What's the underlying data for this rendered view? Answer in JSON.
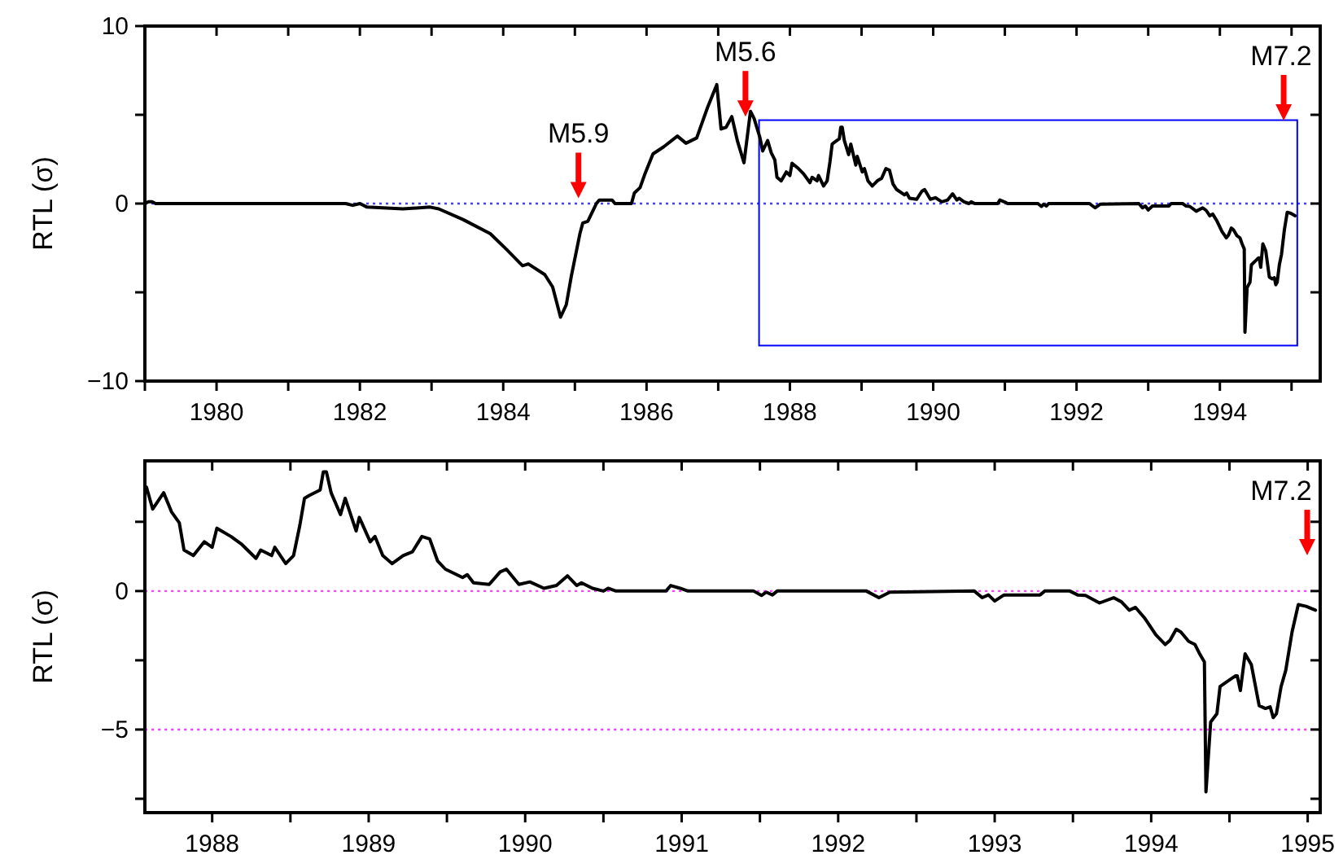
{
  "chart_data": [
    {
      "type": "line",
      "ylabel": "RTL (σ)",
      "xlim": [
        1979,
        1995.4
      ],
      "ylim": [
        -10,
        10
      ],
      "xticks": [
        {
          "value": 1979,
          "label": null
        },
        1980,
        {
          "value": 1981,
          "label": null
        },
        1982,
        {
          "value": 1983,
          "label": null
        },
        1984,
        {
          "value": 1985,
          "label": null
        },
        1986,
        {
          "value": 1987,
          "label": null
        },
        1988,
        {
          "value": 1989,
          "label": null
        },
        1990,
        {
          "value": 1991,
          "label": null
        },
        1992,
        {
          "value": 1993,
          "label": null
        },
        1994,
        {
          "value": 1995,
          "label": null
        }
      ],
      "yticks": [
        -10,
        {
          "value": -5,
          "label": null
        },
        0,
        {
          "value": 5,
          "label": null
        },
        10
      ],
      "grid": false,
      "marker": "none",
      "line_style": "solid",
      "ref_lines": [
        {
          "axis": "y",
          "value": 0,
          "color": "#4040ff",
          "line_style": "dotted"
        }
      ],
      "annotations": [
        {
          "text": "M5.9",
          "x": 1985.05,
          "y": 0.3
        },
        {
          "text": "M5.6",
          "x": 1987.38,
          "y": 4.9
        },
        {
          "text": "M7.2",
          "x": 1994.89
        }
      ],
      "series": [
        {
          "color": "#000000",
          "x": [
            1979.0,
            1979.05,
            1979.1,
            1979.15,
            1981.7,
            1981.8,
            1981.9,
            1982.0,
            1982.1,
            1982.6,
            1982.98,
            1983.1,
            1983.44,
            1983.82,
            1984.05,
            1984.27,
            1984.35,
            1984.58,
            1984.69,
            1984.8,
            1984.88,
            1984.95,
            1985.07,
            1985.11,
            1985.18,
            1985.3,
            1985.34,
            1985.52,
            1985.56,
            1985.79,
            1985.83,
            1985.91,
            1985.98,
            1986.09,
            1986.24,
            1986.43,
            1986.55,
            1986.7,
            1986.85,
            1986.92,
            1986.98,
            1987.04,
            1987.11,
            1987.19,
            1987.27,
            1987.36,
            1987.45,
            1987.5,
            1987.58,
            1987.62,
            1987.69,
            1987.74,
            1987.79,
            1987.82,
            1987.88,
            1987.95,
            1988.0,
            1988.03,
            1988.12,
            1988.19,
            1988.28,
            1988.31,
            1988.38,
            1988.4,
            1988.47,
            1988.52,
            1988.56,
            1988.59,
            1988.62,
            1988.69,
            1988.71,
            1988.73,
            1988.76,
            1988.82,
            1988.85,
            1988.92,
            1988.94,
            1989.01,
            1989.04,
            1989.09,
            1989.15,
            1989.22,
            1989.28,
            1989.34,
            1989.39,
            1989.44,
            1989.49,
            1989.6,
            1989.63,
            1989.67,
            1989.77,
            1989.84,
            1989.88,
            1989.96,
            1990.03,
            1990.12,
            1990.2,
            1990.27,
            1990.33,
            1990.36,
            1990.43,
            1990.5,
            1990.53,
            1990.58,
            1990.9,
            1990.93,
            1990.99,
            1991.04,
            1991.46,
            1991.51,
            1991.54,
            1991.58,
            1991.61,
            1992.18,
            1992.26,
            1992.33,
            1992.87,
            1992.92,
            1992.96,
            1993.0,
            1993.06,
            1993.29,
            1993.32,
            1993.48,
            1993.53,
            1993.58,
            1993.67,
            1993.76,
            1993.81,
            1993.86,
            1993.9,
            1993.96,
            1994.03,
            1994.09,
            1994.12,
            1994.16,
            1994.19,
            1994.24,
            1994.28,
            1994.31,
            1994.34,
            1994.35,
            1994.38,
            1994.42,
            1994.44,
            1994.49,
            1994.54,
            1994.55,
            1994.57,
            1994.6,
            1994.64,
            1994.69,
            1994.73,
            1994.76,
            1994.78,
            1994.8,
            1994.83,
            1994.86,
            1994.9,
            1994.94,
            1994.99,
            1995.05
          ],
          "values": [
            0,
            0.1,
            0.1,
            0,
            0,
            0,
            -0.1,
            0,
            -0.2,
            -0.3,
            -0.2,
            -0.3,
            -0.9,
            -1.7,
            -2.6,
            -3.5,
            -3.4,
            -4.0,
            -4.7,
            -6.4,
            -5.7,
            -4.1,
            -1.7,
            -1.1,
            -1.0,
            0,
            0.2,
            0.2,
            0,
            0,
            0.6,
            0.9,
            1.7,
            2.8,
            3.2,
            3.8,
            3.4,
            3.7,
            5.4,
            6.1,
            6.7,
            4.2,
            4.3,
            4.9,
            3.5,
            2.3,
            5.2,
            4.8,
            3.75,
            2.96,
            3.55,
            2.86,
            2.46,
            1.48,
            1.28,
            1.78,
            1.58,
            2.27,
            1.97,
            1.68,
            1.18,
            1.48,
            1.28,
            1.58,
            0.99,
            1.28,
            2.37,
            3.35,
            3.45,
            3.65,
            4.3,
            4.3,
            3.55,
            2.76,
            3.35,
            2.17,
            2.66,
            1.78,
            1.97,
            1.28,
            0.99,
            1.28,
            1.42,
            1.97,
            1.88,
            1.09,
            0.79,
            0.49,
            0.59,
            0.3,
            0.24,
            0.69,
            0.79,
            0.24,
            0.33,
            0.1,
            0.2,
            0.55,
            0.2,
            0.3,
            0.1,
            0,
            0.1,
            0,
            0,
            0.2,
            0.1,
            0,
            0,
            -0.16,
            -0.04,
            -0.14,
            0,
            0,
            -0.24,
            -0.04,
            0,
            -0.24,
            -0.14,
            -0.36,
            -0.14,
            -0.14,
            0,
            0,
            -0.14,
            -0.16,
            -0.43,
            -0.24,
            -0.39,
            -0.69,
            -0.59,
            -0.99,
            -1.58,
            -1.93,
            -1.78,
            -1.38,
            -1.48,
            -1.82,
            -1.93,
            -2.27,
            -2.56,
            -7.25,
            -4.73,
            -4.43,
            -3.45,
            -3.25,
            -3.06,
            -3.06,
            -3.59,
            -2.27,
            -2.66,
            -4.14,
            -4.24,
            -4.18,
            -4.57,
            -4.43,
            -3.45,
            -2.86,
            -1.48,
            -0.49,
            -0.55,
            -0.69
          ]
        }
      ]
    },
    {
      "type": "line",
      "ylabel": "RTL (σ)",
      "xlim": [
        1987.57,
        1995.08
      ],
      "ylim": [
        -8,
        4.7
      ],
      "xticks": [
        1988,
        {
          "value": 1988.5,
          "label": null
        },
        1989,
        {
          "value": 1989.5,
          "label": null
        },
        1990,
        {
          "value": 1990.5,
          "label": null
        },
        1991,
        {
          "value": 1991.5,
          "label": null
        },
        1992,
        {
          "value": 1992.5,
          "label": null
        },
        1993,
        {
          "value": 1993.5,
          "label": null
        },
        1994,
        {
          "value": 1994.5,
          "label": null
        },
        1995
      ],
      "yticks": [
        {
          "value": -7.5,
          "label": null
        },
        -5,
        {
          "value": -2.5,
          "label": null
        },
        0,
        {
          "value": 2.5,
          "label": null
        }
      ],
      "grid": false,
      "marker": "none",
      "line_style": "solid",
      "ref_lines": [
        {
          "axis": "y",
          "value": 0,
          "color": "#ff40ff",
          "line_style": "dotted"
        },
        {
          "axis": "y",
          "value": -5,
          "color": "#ff40ff",
          "line_style": "dotted"
        }
      ],
      "annotations": [
        "M7.2"
      ],
      "series": [
        {
          "color": "#000000",
          "x": [
            1987.58,
            1987.62,
            1987.69,
            1987.74,
            1987.79,
            1987.82,
            1987.88,
            1987.95,
            1988.0,
            1988.03,
            1988.12,
            1988.19,
            1988.28,
            1988.31,
            1988.38,
            1988.4,
            1988.47,
            1988.52,
            1988.56,
            1988.59,
            1988.62,
            1988.69,
            1988.71,
            1988.73,
            1988.76,
            1988.82,
            1988.85,
            1988.92,
            1988.94,
            1989.01,
            1989.04,
            1989.09,
            1989.15,
            1989.22,
            1989.28,
            1989.34,
            1989.39,
            1989.44,
            1989.49,
            1989.6,
            1989.63,
            1989.67,
            1989.77,
            1989.84,
            1989.88,
            1989.96,
            1990.03,
            1990.12,
            1990.2,
            1990.27,
            1990.33,
            1990.36,
            1990.43,
            1990.5,
            1990.53,
            1990.58,
            1990.9,
            1990.93,
            1990.99,
            1991.04,
            1991.46,
            1991.51,
            1991.54,
            1991.58,
            1991.61,
            1992.18,
            1992.26,
            1992.33,
            1992.87,
            1992.92,
            1992.96,
            1993.0,
            1993.06,
            1993.29,
            1993.32,
            1993.48,
            1993.53,
            1993.58,
            1993.67,
            1993.76,
            1993.81,
            1993.86,
            1993.9,
            1993.96,
            1994.03,
            1994.09,
            1994.12,
            1994.16,
            1994.19,
            1994.24,
            1994.28,
            1994.31,
            1994.34,
            1994.35,
            1994.38,
            1994.42,
            1994.44,
            1994.49,
            1994.54,
            1994.55,
            1994.57,
            1994.6,
            1994.64,
            1994.69,
            1994.73,
            1994.76,
            1994.78,
            1994.8,
            1994.83,
            1994.86,
            1994.9,
            1994.94,
            1994.99,
            1995.05
          ],
          "values": [
            3.75,
            2.96,
            3.55,
            2.86,
            2.46,
            1.48,
            1.28,
            1.78,
            1.58,
            2.27,
            1.97,
            1.68,
            1.18,
            1.48,
            1.28,
            1.58,
            0.99,
            1.28,
            2.37,
            3.35,
            3.45,
            3.65,
            4.3,
            4.3,
            3.55,
            2.76,
            3.35,
            2.17,
            2.66,
            1.78,
            1.97,
            1.28,
            0.99,
            1.28,
            1.42,
            1.97,
            1.88,
            1.09,
            0.79,
            0.49,
            0.59,
            0.3,
            0.24,
            0.69,
            0.79,
            0.24,
            0.33,
            0.1,
            0.2,
            0.55,
            0.2,
            0.3,
            0.1,
            0,
            0.1,
            0,
            0,
            0.2,
            0.1,
            0,
            0,
            -0.16,
            -0.04,
            -0.14,
            0,
            0,
            -0.24,
            -0.04,
            0,
            -0.24,
            -0.14,
            -0.36,
            -0.14,
            -0.14,
            0,
            0,
            -0.14,
            -0.16,
            -0.43,
            -0.24,
            -0.39,
            -0.69,
            -0.59,
            -0.99,
            -1.58,
            -1.93,
            -1.78,
            -1.38,
            -1.48,
            -1.82,
            -1.93,
            -2.27,
            -2.56,
            -7.25,
            -4.73,
            -4.43,
            -3.45,
            -3.25,
            -3.06,
            -3.06,
            -3.59,
            -2.27,
            -2.66,
            -4.14,
            -4.24,
            -4.18,
            -4.57,
            -4.43,
            -3.45,
            -2.86,
            -1.48,
            -0.49,
            -0.55,
            -0.69
          ]
        }
      ]
    }
  ]
}
